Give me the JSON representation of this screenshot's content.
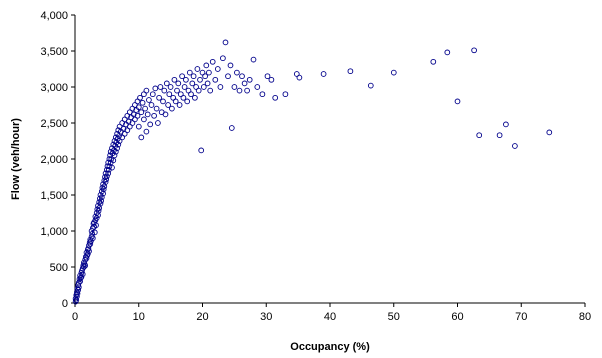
{
  "chart_data": {
    "type": "scatter",
    "title": "",
    "xlabel": "Occupancy (%)",
    "ylabel": "Flow (veh/hour)",
    "xlim": [
      0,
      80
    ],
    "ylim": [
      0,
      4000
    ],
    "x_ticks": [
      "0",
      "10",
      "20",
      "30",
      "40",
      "50",
      "60",
      "70",
      "80"
    ],
    "y_ticks": [
      "0",
      "500",
      "1,000",
      "1,500",
      "2,000",
      "2,500",
      "3,000",
      "3,500",
      "4,000"
    ],
    "grid": "none",
    "legend": "none",
    "marker": {
      "shape": "open-circle",
      "color": "#00008b"
    },
    "series": [
      {
        "values": [
          [
            0.1,
            20
          ],
          [
            0.1,
            60
          ],
          [
            0.2,
            110
          ],
          [
            0.2,
            40
          ],
          [
            0.3,
            150
          ],
          [
            0.3,
            90
          ],
          [
            0.4,
            200
          ],
          [
            0.4,
            130
          ],
          [
            0.5,
            250
          ],
          [
            0.5,
            180
          ],
          [
            0.6,
            280
          ],
          [
            0.6,
            220
          ],
          [
            0.7,
            330
          ],
          [
            0.8,
            300
          ],
          [
            0.8,
            380
          ],
          [
            0.9,
            350
          ],
          [
            1.0,
            420
          ],
          [
            1.0,
            360
          ],
          [
            1.1,
            450
          ],
          [
            1.2,
            480
          ],
          [
            1.2,
            400
          ],
          [
            1.3,
            520
          ],
          [
            1.4,
            500
          ],
          [
            1.4,
            560
          ],
          [
            1.5,
            540
          ],
          [
            1.6,
            600
          ],
          [
            1.6,
            520
          ],
          [
            1.7,
            640
          ],
          [
            1.8,
            620
          ],
          [
            1.8,
            700
          ],
          [
            1.9,
            660
          ],
          [
            2.0,
            740
          ],
          [
            2.0,
            680
          ],
          [
            2.1,
            760
          ],
          [
            2.2,
            800
          ],
          [
            2.2,
            720
          ],
          [
            2.3,
            840
          ],
          [
            2.4,
            820
          ],
          [
            2.4,
            880
          ],
          [
            2.5,
            860
          ],
          [
            2.6,
            920
          ],
          [
            2.6,
            1000
          ],
          [
            2.7,
            960
          ],
          [
            2.8,
            1040
          ],
          [
            2.8,
            900
          ],
          [
            2.9,
            1100
          ],
          [
            3.0,
            1060
          ],
          [
            3.0,
            1120
          ],
          [
            3.1,
            980
          ],
          [
            3.2,
            1150
          ],
          [
            3.2,
            1200
          ],
          [
            3.3,
            1080
          ],
          [
            3.4,
            1250
          ],
          [
            3.4,
            1180
          ],
          [
            3.5,
            1300
          ],
          [
            3.6,
            1220
          ],
          [
            3.6,
            1350
          ],
          [
            3.7,
            1280
          ],
          [
            3.8,
            1400
          ],
          [
            3.8,
            1320
          ],
          [
            3.9,
            1450
          ],
          [
            4.0,
            1380
          ],
          [
            4.0,
            1500
          ],
          [
            4.1,
            1420
          ],
          [
            4.2,
            1550
          ],
          [
            4.2,
            1470
          ],
          [
            4.3,
            1600
          ],
          [
            4.4,
            1520
          ],
          [
            4.4,
            1650
          ],
          [
            4.5,
            1580
          ],
          [
            4.6,
            1700
          ],
          [
            4.6,
            1620
          ],
          [
            4.7,
            1750
          ],
          [
            4.8,
            1680
          ],
          [
            4.8,
            1800
          ],
          [
            4.9,
            1720
          ],
          [
            5.0,
            1850
          ],
          [
            5.0,
            1760
          ],
          [
            5.1,
            1900
          ],
          [
            5.2,
            1800
          ],
          [
            5.2,
            1950
          ],
          [
            5.3,
            1850
          ],
          [
            5.4,
            2000
          ],
          [
            5.4,
            1900
          ],
          [
            5.5,
            2050
          ],
          [
            5.6,
            1950
          ],
          [
            5.6,
            2100
          ],
          [
            5.7,
            2000
          ],
          [
            5.8,
            2150
          ],
          [
            5.8,
            1880
          ],
          [
            5.9,
            2080
          ],
          [
            6.0,
            2200
          ],
          [
            6.0,
            1980
          ],
          [
            6.1,
            2120
          ],
          [
            6.2,
            2250
          ],
          [
            6.2,
            2050
          ],
          [
            6.3,
            2180
          ],
          [
            6.4,
            2300
          ],
          [
            6.4,
            2100
          ],
          [
            6.5,
            2230
          ],
          [
            6.6,
            2350
          ],
          [
            6.6,
            2150
          ],
          [
            6.7,
            2280
          ],
          [
            6.8,
            2400
          ],
          [
            6.8,
            2200
          ],
          [
            6.9,
            2320
          ],
          [
            7.0,
            2450
          ],
          [
            7.0,
            2250
          ],
          [
            7.2,
            2380
          ],
          [
            7.4,
            2500
          ],
          [
            7.4,
            2300
          ],
          [
            7.6,
            2420
          ],
          [
            7.8,
            2550
          ],
          [
            7.8,
            2350
          ],
          [
            8.0,
            2480
          ],
          [
            8.2,
            2600
          ],
          [
            8.2,
            2400
          ],
          [
            8.4,
            2520
          ],
          [
            8.6,
            2650
          ],
          [
            8.6,
            2450
          ],
          [
            8.8,
            2580
          ],
          [
            9.0,
            2700
          ],
          [
            9.0,
            2500
          ],
          [
            9.2,
            2620
          ],
          [
            9.4,
            2750
          ],
          [
            9.4,
            2550
          ],
          [
            9.6,
            2680
          ],
          [
            9.8,
            2800
          ],
          [
            9.8,
            2600
          ],
          [
            10.0,
            2720
          ],
          [
            10.0,
            2450
          ],
          [
            10.2,
            2850
          ],
          [
            10.4,
            2650
          ],
          [
            10.4,
            2300
          ],
          [
            10.6,
            2780
          ],
          [
            10.8,
            2900
          ],
          [
            10.8,
            2550
          ],
          [
            11.0,
            2700
          ],
          [
            11.2,
            2950
          ],
          [
            11.2,
            2380
          ],
          [
            11.4,
            2620
          ],
          [
            11.6,
            2820
          ],
          [
            11.8,
            2480
          ],
          [
            12.0,
            2750
          ],
          [
            12.2,
            2900
          ],
          [
            12.4,
            2600
          ],
          [
            12.6,
            2980
          ],
          [
            12.8,
            2700
          ],
          [
            13.0,
            2500
          ],
          [
            13.2,
            2850
          ],
          [
            13.4,
            3000
          ],
          [
            13.6,
            2650
          ],
          [
            13.8,
            2800
          ],
          [
            14.0,
            2950
          ],
          [
            14.2,
            2620
          ],
          [
            14.4,
            3050
          ],
          [
            14.6,
            2750
          ],
          [
            14.8,
            2900
          ],
          [
            15.0,
            3000
          ],
          [
            15.2,
            2700
          ],
          [
            15.4,
            2850
          ],
          [
            15.6,
            3100
          ],
          [
            15.8,
            2800
          ],
          [
            16.0,
            2950
          ],
          [
            16.2,
            3050
          ],
          [
            16.4,
            2750
          ],
          [
            16.6,
            2900
          ],
          [
            16.8,
            3150
          ],
          [
            17.0,
            2850
          ],
          [
            17.2,
            3000
          ],
          [
            17.4,
            3100
          ],
          [
            17.6,
            2800
          ],
          [
            17.8,
            2950
          ],
          [
            18.0,
            3200
          ],
          [
            18.2,
            2900
          ],
          [
            18.4,
            3050
          ],
          [
            18.6,
            3150
          ],
          [
            18.8,
            2850
          ],
          [
            19.0,
            3000
          ],
          [
            19.2,
            3250
          ],
          [
            19.4,
            2950
          ],
          [
            19.6,
            3100
          ],
          [
            19.8,
            2120
          ],
          [
            20.0,
            3200
          ],
          [
            20.2,
            3000
          ],
          [
            20.4,
            3150
          ],
          [
            20.6,
            3300
          ],
          [
            20.8,
            3050
          ],
          [
            21.0,
            3200
          ],
          [
            21.2,
            2950
          ],
          [
            21.6,
            3350
          ],
          [
            22.0,
            3100
          ],
          [
            22.4,
            3250
          ],
          [
            22.8,
            3000
          ],
          [
            23.2,
            3400
          ],
          [
            23.6,
            3620
          ],
          [
            24.0,
            3150
          ],
          [
            24.4,
            3300
          ],
          [
            24.6,
            2430
          ],
          [
            25.0,
            3000
          ],
          [
            25.4,
            3200
          ],
          [
            25.8,
            2950
          ],
          [
            26.2,
            3150
          ],
          [
            26.6,
            3050
          ],
          [
            27.0,
            2950
          ],
          [
            27.4,
            3100
          ],
          [
            28.0,
            3380
          ],
          [
            28.6,
            3000
          ],
          [
            29.4,
            2900
          ],
          [
            30.2,
            3150
          ],
          [
            30.8,
            3100
          ],
          [
            31.4,
            2850
          ],
          [
            33.0,
            2900
          ],
          [
            34.8,
            3180
          ],
          [
            35.2,
            3130
          ],
          [
            39.0,
            3180
          ],
          [
            43.2,
            3220
          ],
          [
            46.4,
            3020
          ],
          [
            50.0,
            3200
          ],
          [
            56.2,
            3350
          ],
          [
            58.4,
            3480
          ],
          [
            60.0,
            2800
          ],
          [
            62.6,
            3510
          ],
          [
            63.4,
            2330
          ],
          [
            66.6,
            2330
          ],
          [
            67.6,
            2480
          ],
          [
            69.0,
            2180
          ],
          [
            74.4,
            2370
          ]
        ]
      }
    ]
  }
}
